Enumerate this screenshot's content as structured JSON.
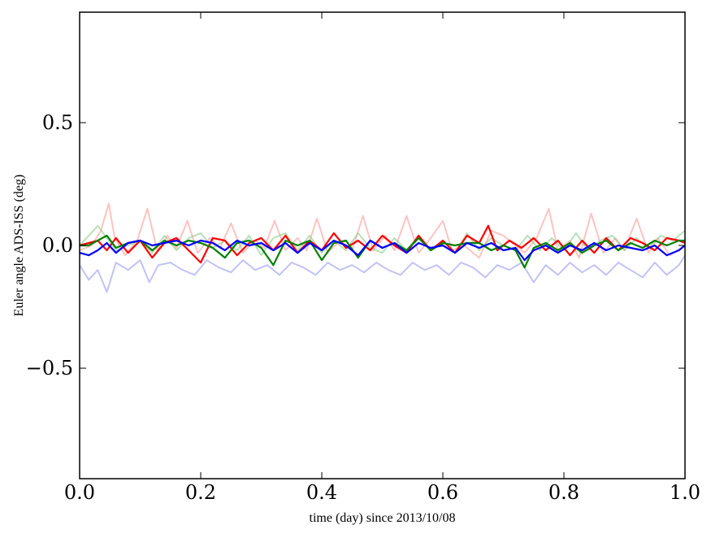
{
  "chart_data": {
    "type": "line",
    "title": "",
    "xlabel": "time (day) since 2013/10/08",
    "ylabel": "Euler angle ADS-ISS (deg)",
    "xlim": [
      0.0,
      1.0
    ],
    "ylim": [
      -0.95,
      0.95
    ],
    "grid": false,
    "x_ticks": [
      {
        "value": 0.0,
        "label": "0.0"
      },
      {
        "value": 0.2,
        "label": "0.2"
      },
      {
        "value": 0.4,
        "label": "0.4"
      },
      {
        "value": 0.6,
        "label": "0.6"
      },
      {
        "value": 0.8,
        "label": "0.8"
      },
      {
        "value": 1.0,
        "label": "1.0"
      }
    ],
    "y_ticks": [
      {
        "value": 0.5,
        "label": "0.5"
      },
      {
        "value": 0.0,
        "label": "0.0"
      },
      {
        "value": -0.5,
        "label": "−0.5"
      }
    ],
    "series": [
      {
        "name": "light-red",
        "color": "#ff9999",
        "opacity": 0.6,
        "width": 2,
        "x": [
          0.0,
          0.02,
          0.035,
          0.048,
          0.058,
          0.075,
          0.095,
          0.112,
          0.128,
          0.145,
          0.16,
          0.178,
          0.195,
          0.215,
          0.232,
          0.25,
          0.27,
          0.29,
          0.305,
          0.322,
          0.34,
          0.36,
          0.375,
          0.392,
          0.41,
          0.43,
          0.45,
          0.468,
          0.485,
          0.505,
          0.52,
          0.54,
          0.56,
          0.58,
          0.6,
          0.615,
          0.635,
          0.66,
          0.68,
          0.7,
          0.715,
          0.735,
          0.755,
          0.775,
          0.79,
          0.81,
          0.825,
          0.845,
          0.865,
          0.885,
          0.9,
          0.92,
          0.94,
          0.955,
          0.975,
          1.0
        ],
        "y": [
          -0.02,
          0.0,
          0.06,
          0.17,
          0.03,
          -0.04,
          0.02,
          0.15,
          -0.02,
          0.04,
          -0.01,
          0.1,
          -0.03,
          0.03,
          -0.01,
          0.09,
          -0.03,
          0.02,
          -0.01,
          0.1,
          -0.02,
          0.03,
          -0.02,
          0.11,
          -0.03,
          0.02,
          -0.02,
          0.12,
          -0.02,
          0.04,
          -0.02,
          0.12,
          -0.03,
          0.03,
          0.1,
          -0.02,
          0.0,
          -0.05,
          0.06,
          0.04,
          0.01,
          -0.03,
          0.03,
          0.15,
          -0.02,
          0.02,
          -0.05,
          0.13,
          -0.03,
          0.03,
          -0.02,
          0.11,
          -0.03,
          0.03,
          -0.04,
          0.0
        ]
      },
      {
        "name": "light-green",
        "color": "#88cc88",
        "opacity": 0.6,
        "width": 2,
        "x": [
          0.0,
          0.015,
          0.03,
          0.045,
          0.06,
          0.08,
          0.1,
          0.12,
          0.14,
          0.16,
          0.18,
          0.2,
          0.22,
          0.24,
          0.26,
          0.28,
          0.3,
          0.32,
          0.34,
          0.36,
          0.38,
          0.4,
          0.42,
          0.44,
          0.46,
          0.48,
          0.5,
          0.52,
          0.54,
          0.56,
          0.58,
          0.6,
          0.62,
          0.64,
          0.66,
          0.68,
          0.7,
          0.72,
          0.74,
          0.76,
          0.78,
          0.8,
          0.82,
          0.84,
          0.86,
          0.88,
          0.9,
          0.92,
          0.94,
          0.96,
          0.98,
          1.0
        ],
        "y": [
          0.0,
          0.04,
          0.08,
          0.03,
          -0.02,
          0.0,
          0.02,
          -0.03,
          0.04,
          -0.02,
          0.03,
          0.05,
          -0.01,
          0.02,
          -0.02,
          0.04,
          -0.04,
          0.03,
          0.05,
          -0.02,
          0.04,
          -0.03,
          0.02,
          -0.02,
          0.05,
          -0.01,
          -0.03,
          0.03,
          -0.02,
          0.04,
          -0.02,
          0.02,
          -0.03,
          0.05,
          -0.02,
          0.03,
          0.0,
          -0.02,
          0.04,
          -0.02,
          0.03,
          -0.02,
          0.05,
          -0.02,
          0.02,
          0.04,
          -0.02,
          0.03,
          -0.01,
          0.04,
          0.02,
          0.06
        ]
      },
      {
        "name": "light-blue",
        "color": "#9999ee",
        "opacity": 0.6,
        "width": 2,
        "x": [
          0.0,
          0.015,
          0.03,
          0.045,
          0.06,
          0.08,
          0.1,
          0.115,
          0.13,
          0.15,
          0.17,
          0.19,
          0.21,
          0.23,
          0.25,
          0.27,
          0.29,
          0.31,
          0.33,
          0.35,
          0.37,
          0.39,
          0.41,
          0.43,
          0.45,
          0.47,
          0.49,
          0.51,
          0.53,
          0.55,
          0.57,
          0.59,
          0.61,
          0.63,
          0.65,
          0.67,
          0.69,
          0.71,
          0.73,
          0.75,
          0.77,
          0.79,
          0.81,
          0.83,
          0.85,
          0.87,
          0.89,
          0.91,
          0.93,
          0.95,
          0.97,
          0.99,
          1.0
        ],
        "y": [
          -0.08,
          -0.14,
          -0.1,
          -0.19,
          -0.07,
          -0.1,
          -0.06,
          -0.15,
          -0.08,
          -0.07,
          -0.1,
          -0.12,
          -0.06,
          -0.09,
          -0.11,
          -0.06,
          -0.1,
          -0.08,
          -0.12,
          -0.07,
          -0.09,
          -0.12,
          -0.07,
          -0.1,
          -0.08,
          -0.11,
          -0.07,
          -0.1,
          -0.12,
          -0.07,
          -0.1,
          -0.08,
          -0.12,
          -0.07,
          -0.09,
          -0.13,
          -0.08,
          -0.1,
          -0.07,
          -0.15,
          -0.08,
          -0.12,
          -0.07,
          -0.11,
          -0.08,
          -0.12,
          -0.07,
          -0.1,
          -0.13,
          -0.07,
          -0.12,
          -0.08,
          -0.04
        ]
      },
      {
        "name": "red",
        "color": "#ff0000",
        "opacity": 1,
        "width": 2.2,
        "x": [
          0.0,
          0.015,
          0.03,
          0.045,
          0.06,
          0.08,
          0.1,
          0.12,
          0.14,
          0.16,
          0.18,
          0.2,
          0.22,
          0.24,
          0.26,
          0.28,
          0.3,
          0.32,
          0.34,
          0.36,
          0.38,
          0.4,
          0.42,
          0.44,
          0.46,
          0.48,
          0.5,
          0.52,
          0.54,
          0.56,
          0.58,
          0.6,
          0.62,
          0.64,
          0.66,
          0.675,
          0.69,
          0.71,
          0.73,
          0.75,
          0.77,
          0.79,
          0.81,
          0.83,
          0.85,
          0.87,
          0.89,
          0.91,
          0.93,
          0.95,
          0.97,
          0.99,
          1.0
        ],
        "y": [
          0.0,
          0.01,
          0.02,
          -0.02,
          0.03,
          -0.03,
          0.02,
          -0.05,
          0.01,
          0.03,
          -0.02,
          -0.07,
          0.03,
          0.02,
          -0.04,
          0.01,
          0.03,
          -0.02,
          0.04,
          -0.03,
          0.02,
          -0.02,
          0.05,
          -0.01,
          0.02,
          -0.02,
          0.04,
          0.0,
          -0.03,
          0.04,
          -0.02,
          0.02,
          -0.03,
          0.04,
          0.01,
          0.08,
          -0.02,
          0.02,
          -0.01,
          0.03,
          -0.02,
          0.02,
          -0.04,
          0.02,
          -0.03,
          0.03,
          -0.02,
          0.03,
          0.01,
          -0.02,
          0.03,
          0.02,
          0.01
        ]
      },
      {
        "name": "green",
        "color": "#008000",
        "opacity": 1,
        "width": 2.2,
        "x": [
          0.0,
          0.015,
          0.03,
          0.045,
          0.06,
          0.08,
          0.1,
          0.12,
          0.14,
          0.16,
          0.18,
          0.2,
          0.22,
          0.24,
          0.26,
          0.28,
          0.3,
          0.32,
          0.34,
          0.36,
          0.38,
          0.4,
          0.42,
          0.44,
          0.46,
          0.48,
          0.5,
          0.52,
          0.54,
          0.56,
          0.58,
          0.6,
          0.62,
          0.64,
          0.66,
          0.68,
          0.7,
          0.72,
          0.735,
          0.75,
          0.77,
          0.79,
          0.81,
          0.83,
          0.85,
          0.87,
          0.89,
          0.91,
          0.93,
          0.95,
          0.97,
          0.99,
          1.0
        ],
        "y": [
          0.0,
          0.0,
          0.02,
          0.04,
          -0.01,
          0.01,
          0.02,
          -0.02,
          0.02,
          0.0,
          0.02,
          0.01,
          -0.01,
          -0.05,
          0.01,
          0.02,
          -0.01,
          -0.08,
          0.02,
          0.0,
          0.02,
          -0.06,
          0.01,
          0.02,
          -0.05,
          0.02,
          -0.01,
          0.01,
          -0.02,
          0.03,
          -0.02,
          0.01,
          0.0,
          0.01,
          0.01,
          -0.02,
          0.0,
          -0.02,
          -0.09,
          -0.01,
          0.01,
          -0.02,
          0.01,
          -0.03,
          0.0,
          0.02,
          -0.02,
          0.01,
          -0.01,
          0.02,
          0.0,
          0.02,
          0.02
        ]
      },
      {
        "name": "blue",
        "color": "#0000ff",
        "opacity": 1,
        "width": 2.2,
        "x": [
          0.0,
          0.015,
          0.03,
          0.045,
          0.06,
          0.08,
          0.1,
          0.12,
          0.14,
          0.16,
          0.18,
          0.2,
          0.22,
          0.24,
          0.26,
          0.28,
          0.3,
          0.32,
          0.34,
          0.36,
          0.38,
          0.4,
          0.42,
          0.44,
          0.46,
          0.48,
          0.5,
          0.52,
          0.54,
          0.56,
          0.58,
          0.6,
          0.62,
          0.64,
          0.66,
          0.68,
          0.7,
          0.72,
          0.735,
          0.75,
          0.77,
          0.79,
          0.81,
          0.83,
          0.85,
          0.87,
          0.89,
          0.91,
          0.93,
          0.95,
          0.97,
          0.99,
          1.0
        ],
        "y": [
          -0.03,
          -0.04,
          -0.02,
          0.01,
          -0.03,
          0.01,
          0.02,
          0.0,
          0.01,
          0.02,
          0.0,
          0.02,
          0.01,
          -0.02,
          0.02,
          0.0,
          0.01,
          -0.02,
          0.01,
          -0.03,
          0.01,
          -0.02,
          0.02,
          0.0,
          -0.04,
          0.02,
          -0.01,
          0.01,
          -0.03,
          0.01,
          -0.01,
          0.0,
          -0.03,
          0.01,
          -0.01,
          0.01,
          -0.02,
          -0.01,
          -0.06,
          -0.02,
          0.0,
          -0.03,
          0.0,
          -0.02,
          0.01,
          -0.02,
          0.0,
          -0.01,
          -0.02,
          0.0,
          -0.04,
          -0.02,
          0.0
        ]
      }
    ]
  }
}
